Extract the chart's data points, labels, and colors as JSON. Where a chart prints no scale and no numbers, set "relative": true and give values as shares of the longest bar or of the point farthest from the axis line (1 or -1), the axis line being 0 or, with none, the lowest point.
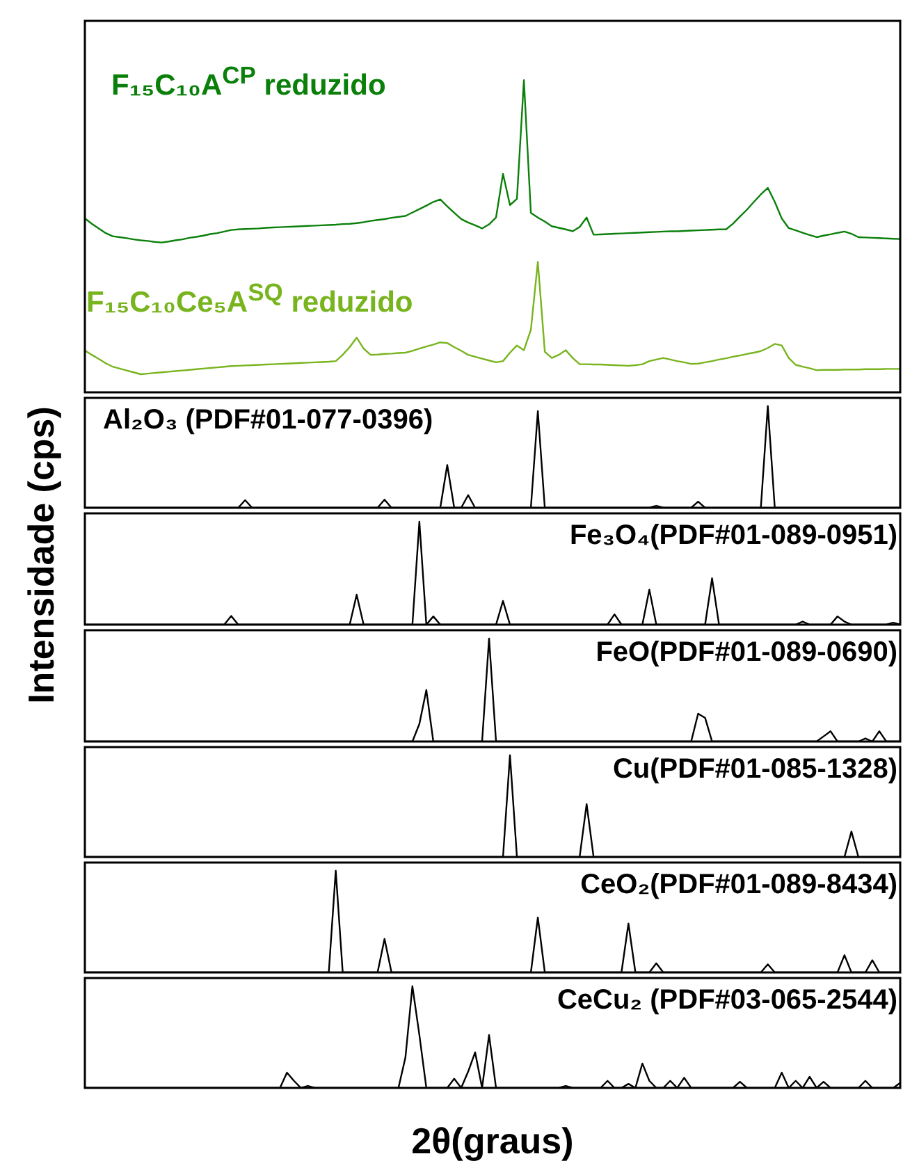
{
  "chart_data": [
    {
      "type": "line",
      "relative": true,
      "ylabel": "Intensidade (cps)",
      "categories": [
        null,
        null,
        null,
        null,
        null,
        null,
        null,
        null,
        null,
        null,
        null,
        null,
        null,
        null,
        null,
        null,
        null,
        null,
        null,
        null,
        null,
        null,
        null,
        null,
        null,
        null,
        null,
        null,
        null,
        null,
        null,
        null,
        null,
        null,
        null,
        null,
        null,
        null,
        null,
        null,
        null,
        null,
        null,
        null,
        null,
        null,
        null,
        null,
        null,
        null,
        null,
        null,
        null,
        null,
        null,
        null,
        null,
        null,
        null,
        null,
        null,
        null,
        null,
        null,
        null,
        null,
        null,
        null,
        null,
        null,
        null,
        null,
        null,
        null,
        null,
        null,
        null,
        null,
        null,
        null,
        null,
        null,
        null,
        null,
        null,
        null,
        null,
        null,
        null,
        null,
        null,
        null,
        null,
        null,
        null,
        null,
        null,
        null,
        null,
        null,
        null,
        null,
        null,
        null,
        null,
        null,
        null,
        null,
        null,
        null,
        null,
        null,
        null,
        null,
        null,
        null,
        null,
        null
      ],
      "series": [
        {
          "name": "F₁₅C₁₀A$^{CP}$ reduzido",
          "color": "#0a800a",
          "values": [
            0.557,
            0.54,
            0.525,
            0.51,
            0.5,
            0.497,
            0.494,
            0.49,
            0.487,
            0.485,
            0.482,
            0.48,
            0.483,
            0.487,
            0.49,
            0.495,
            0.498,
            0.502,
            0.507,
            0.51,
            0.515,
            0.52,
            0.522,
            0.523,
            0.524,
            0.525,
            0.527,
            0.528,
            0.529,
            0.53,
            0.531,
            0.532,
            0.533,
            0.534,
            0.535,
            0.536,
            0.537,
            0.539,
            0.54,
            0.542,
            0.545,
            0.549,
            0.552,
            0.555,
            0.559,
            0.562,
            0.565,
            0.576,
            0.587,
            0.598,
            0.61,
            0.618,
            0.596,
            0.575,
            0.555,
            0.544,
            0.535,
            0.525,
            0.538,
            0.56,
            0.7,
            0.6,
            0.62,
            1,
            0.575,
            0.56,
            0.547,
            0.532,
            0.527,
            0.522,
            0.516,
            0.53,
            0.56,
            0.505,
            0.506,
            0.507,
            0.508,
            0.509,
            0.51,
            0.511,
            0.512,
            0.513,
            0.514,
            0.515,
            0.516,
            0.516,
            0.517,
            0.518,
            0.519,
            0.52,
            0.521,
            0.522,
            0.522,
            0.54,
            0.563,
            0.585,
            0.61,
            0.634,
            0.655,
            0.61,
            0.557,
            0.526,
            0.519,
            0.511,
            0.504,
            0.497,
            0.502,
            0.506,
            0.511,
            0.515,
            0.508,
            0.497,
            0.496,
            0.495,
            0.494,
            0.493,
            0.492,
            0.491
          ]
        },
        {
          "name": "F₁₅C₁₀Ce₅A$^{SQ}$ reduzido",
          "color": "#78b41e",
          "values": [
            0.134,
            0.12,
            0.107,
            0.093,
            0.082,
            0.076,
            0.07,
            0.064,
            0.058,
            0.06,
            0.062,
            0.064,
            0.066,
            0.068,
            0.07,
            0.072,
            0.074,
            0.076,
            0.078,
            0.08,
            0.082,
            0.084,
            0.085,
            0.086,
            0.087,
            0.088,
            0.089,
            0.09,
            0.091,
            0.092,
            0.093,
            0.094,
            0.095,
            0.096,
            0.097,
            0.098,
            0.1,
            0.12,
            0.145,
            0.175,
            0.14,
            0.12,
            0.121,
            0.123,
            0.124,
            0.126,
            0.127,
            0.133,
            0.14,
            0.147,
            0.153,
            0.16,
            0.158,
            0.145,
            0.133,
            0.12,
            0.114,
            0.108,
            0.102,
            0.096,
            0.1,
            0.127,
            0.15,
            0.135,
            0.2,
            0.418,
            0.13,
            0.11,
            0.12,
            0.135,
            0.11,
            0.09,
            0.09,
            0.089,
            0.089,
            0.088,
            0.087,
            0.086,
            0.085,
            0.087,
            0.09,
            0.1,
            0.105,
            0.11,
            0.105,
            0.1,
            0.096,
            0.091,
            0.092,
            0.096,
            0.1,
            0.105,
            0.109,
            0.114,
            0.118,
            0.123,
            0.127,
            0.132,
            0.142,
            0.155,
            0.15,
            0.11,
            0.088,
            0.082,
            0.077,
            0.071,
            0.072,
            0.072,
            0.072,
            0.073,
            0.073,
            0.073,
            0.074,
            0.074,
            0.074,
            0.075,
            0.075,
            0.075
          ]
        }
      ]
    },
    {
      "type": "line",
      "relative": true,
      "color": "#000000",
      "annotations": [
        "Al₂O₃ (PDF#01-077-0396)"
      ],
      "categories": [
        null,
        null,
        null,
        null,
        null,
        null,
        null,
        null,
        null,
        null,
        null,
        null,
        null,
        null,
        null,
        null,
        null,
        null,
        null,
        null,
        null,
        null,
        null,
        null,
        null,
        null,
        null,
        null,
        null,
        null,
        null,
        null,
        null,
        null,
        null,
        null,
        null,
        null,
        null,
        null,
        null,
        null,
        null,
        null,
        null,
        null,
        null,
        null,
        null,
        null,
        null,
        null,
        null,
        null,
        null,
        null,
        null,
        null,
        null,
        null,
        null,
        null,
        null,
        null,
        null,
        null,
        null,
        null,
        null,
        null,
        null,
        null,
        null,
        null,
        null,
        null,
        null,
        null,
        null,
        null,
        null,
        null,
        null,
        null,
        null,
        null,
        null,
        null,
        null,
        null,
        null,
        null,
        null,
        null,
        null,
        null,
        null,
        null,
        null,
        null,
        null,
        null,
        null,
        null,
        null,
        null,
        null,
        null,
        null,
        null,
        null,
        null,
        null,
        null,
        null,
        null,
        null,
        null
      ],
      "values": [
        0,
        0,
        0,
        0,
        0,
        0,
        0,
        0,
        0,
        0,
        0,
        0,
        0,
        0,
        0,
        0,
        0,
        0,
        0,
        0,
        0,
        0,
        0,
        0.075,
        0,
        0,
        0,
        0,
        0,
        0,
        0,
        0,
        0,
        0,
        0,
        0,
        0,
        0,
        0,
        0,
        0,
        0,
        0,
        0.08,
        0,
        0,
        0,
        0,
        0,
        0,
        0,
        0,
        0.42,
        0,
        0,
        0.125,
        0,
        0,
        0,
        0,
        0,
        0,
        0,
        0,
        0,
        0.95,
        0,
        0,
        0,
        0,
        0,
        0,
        0,
        0,
        0,
        0,
        0,
        0,
        0,
        0,
        0,
        0,
        0.02,
        0,
        0,
        0,
        0,
        0,
        0.06,
        0,
        0,
        0,
        0,
        0,
        0,
        0,
        0,
        0,
        1,
        0,
        0,
        0,
        0,
        0,
        0,
        0,
        0,
        0,
        0,
        0,
        0,
        0,
        0,
        0,
        0,
        0,
        0,
        0
      ]
    },
    {
      "type": "line",
      "relative": true,
      "color": "#000000",
      "annotations": [
        "Fe₃O₄(PDF#01-089-0951)"
      ],
      "categories": [
        null,
        null,
        null,
        null,
        null,
        null,
        null,
        null,
        null,
        null,
        null,
        null,
        null,
        null,
        null,
        null,
        null,
        null,
        null,
        null,
        null,
        null,
        null,
        null,
        null,
        null,
        null,
        null,
        null,
        null,
        null,
        null,
        null,
        null,
        null,
        null,
        null,
        null,
        null,
        null,
        null,
        null,
        null,
        null,
        null,
        null,
        null,
        null,
        null,
        null,
        null,
        null,
        null,
        null,
        null,
        null,
        null,
        null,
        null,
        null,
        null,
        null,
        null,
        null,
        null,
        null,
        null,
        null,
        null,
        null,
        null,
        null,
        null,
        null,
        null,
        null,
        null,
        null,
        null,
        null,
        null,
        null,
        null,
        null,
        null,
        null,
        null,
        null,
        null,
        null,
        null,
        null,
        null,
        null,
        null,
        null,
        null,
        null,
        null,
        null,
        null,
        null,
        null,
        null,
        null,
        null,
        null,
        null,
        null,
        null,
        null,
        null,
        null,
        null,
        null,
        null,
        null,
        null
      ],
      "values": [
        0,
        0,
        0,
        0,
        0,
        0,
        0,
        0,
        0,
        0,
        0,
        0,
        0,
        0,
        0,
        0,
        0,
        0,
        0,
        0,
        0,
        0.085,
        0,
        0,
        0,
        0,
        0,
        0,
        0,
        0,
        0,
        0,
        0,
        0,
        0,
        0,
        0,
        0,
        0,
        0.29,
        0,
        0,
        0,
        0,
        0,
        0,
        0,
        0,
        1,
        0,
        0.08,
        0,
        0,
        0,
        0,
        0,
        0,
        0,
        0,
        0,
        0.23,
        0,
        0,
        0,
        0,
        0,
        0,
        0,
        0,
        0,
        0,
        0,
        0,
        0,
        0,
        0,
        0.1,
        0,
        0,
        0,
        0,
        0.34,
        0,
        0,
        0,
        0,
        0,
        0,
        0,
        0,
        0.45,
        0,
        0,
        0,
        0,
        0,
        0,
        0,
        0,
        0,
        0,
        0,
        0,
        0.03,
        0,
        0,
        0,
        0,
        0.08,
        0.03,
        0,
        0,
        0,
        0,
        0,
        0,
        0.02,
        0
      ]
    },
    {
      "type": "line",
      "relative": true,
      "color": "#000000",
      "annotations": [
        "FeO(PDF#01-089-0690)"
      ],
      "categories": [
        null,
        null,
        null,
        null,
        null,
        null,
        null,
        null,
        null,
        null,
        null,
        null,
        null,
        null,
        null,
        null,
        null,
        null,
        null,
        null,
        null,
        null,
        null,
        null,
        null,
        null,
        null,
        null,
        null,
        null,
        null,
        null,
        null,
        null,
        null,
        null,
        null,
        null,
        null,
        null,
        null,
        null,
        null,
        null,
        null,
        null,
        null,
        null,
        null,
        null,
        null,
        null,
        null,
        null,
        null,
        null,
        null,
        null,
        null,
        null,
        null,
        null,
        null,
        null,
        null,
        null,
        null,
        null,
        null,
        null,
        null,
        null,
        null,
        null,
        null,
        null,
        null,
        null,
        null,
        null,
        null,
        null,
        null,
        null,
        null,
        null,
        null,
        null,
        null,
        null,
        null,
        null,
        null,
        null,
        null,
        null,
        null,
        null,
        null,
        null,
        null,
        null,
        null,
        null,
        null,
        null,
        null,
        null,
        null,
        null,
        null,
        null,
        null,
        null,
        null,
        null,
        null,
        null
      ],
      "values": [
        0,
        0,
        0,
        0,
        0,
        0,
        0,
        0,
        0,
        0,
        0,
        0,
        0,
        0,
        0,
        0,
        0,
        0,
        0,
        0,
        0,
        0,
        0,
        0,
        0,
        0,
        0,
        0,
        0,
        0,
        0,
        0,
        0,
        0,
        0,
        0,
        0,
        0,
        0,
        0,
        0,
        0,
        0,
        0,
        0,
        0,
        0,
        0,
        0.17,
        0.5,
        0,
        0,
        0,
        0,
        0,
        0,
        0,
        0,
        1,
        0,
        0,
        0,
        0,
        0,
        0,
        0,
        0,
        0,
        0,
        0,
        0,
        0,
        0,
        0,
        0,
        0,
        0,
        0,
        0,
        0,
        0,
        0,
        0,
        0,
        0,
        0,
        0,
        0,
        0.27,
        0.23,
        0,
        0,
        0,
        0,
        0,
        0,
        0,
        0,
        0,
        0,
        0,
        0,
        0,
        0,
        0,
        0,
        0.05,
        0.1,
        0,
        0,
        0,
        0,
        0.03,
        0,
        0.1,
        0,
        0,
        0
      ]
    },
    {
      "type": "line",
      "relative": true,
      "color": "#000000",
      "annotations": [
        "Cu(PDF#01-085-1328)"
      ],
      "categories": [
        null,
        null,
        null,
        null,
        null,
        null,
        null,
        null,
        null,
        null,
        null,
        null,
        null,
        null,
        null,
        null,
        null,
        null,
        null,
        null,
        null,
        null,
        null,
        null,
        null,
        null,
        null,
        null,
        null,
        null,
        null,
        null,
        null,
        null,
        null,
        null,
        null,
        null,
        null,
        null,
        null,
        null,
        null,
        null,
        null,
        null,
        null,
        null,
        null,
        null,
        null,
        null,
        null,
        null,
        null,
        null,
        null,
        null,
        null,
        null,
        null,
        null,
        null,
        null,
        null,
        null,
        null,
        null,
        null,
        null,
        null,
        null,
        null,
        null,
        null,
        null,
        null,
        null,
        null,
        null,
        null,
        null,
        null,
        null,
        null,
        null,
        null,
        null,
        null,
        null,
        null,
        null,
        null,
        null,
        null,
        null,
        null,
        null,
        null,
        null,
        null,
        null,
        null,
        null,
        null,
        null,
        null,
        null,
        null,
        null,
        null,
        null,
        null,
        null,
        null,
        null,
        null,
        null
      ],
      "values": [
        0,
        0,
        0,
        0,
        0,
        0,
        0,
        0,
        0,
        0,
        0,
        0,
        0,
        0,
        0,
        0,
        0,
        0,
        0,
        0,
        0,
        0,
        0,
        0,
        0,
        0,
        0,
        0,
        0,
        0,
        0,
        0,
        0,
        0,
        0,
        0,
        0,
        0,
        0,
        0,
        0,
        0,
        0,
        0,
        0,
        0,
        0,
        0,
        0,
        0,
        0,
        0,
        0,
        0,
        0,
        0,
        0,
        0,
        0,
        0,
        0,
        1,
        0,
        0,
        0,
        0,
        0,
        0,
        0,
        0,
        0,
        0,
        0.52,
        0,
        0,
        0,
        0,
        0,
        0,
        0,
        0,
        0,
        0,
        0,
        0,
        0,
        0,
        0,
        0,
        0,
        0,
        0,
        0,
        0,
        0,
        0,
        0,
        0,
        0,
        0,
        0,
        0,
        0,
        0,
        0,
        0,
        0,
        0,
        0,
        0,
        0.25,
        0,
        0,
        0,
        0,
        0,
        0,
        0
      ]
    },
    {
      "type": "line",
      "relative": true,
      "color": "#000000",
      "annotations": [
        "CeO₂(PDF#01-089-8434)"
      ],
      "categories": [
        null,
        null,
        null,
        null,
        null,
        null,
        null,
        null,
        null,
        null,
        null,
        null,
        null,
        null,
        null,
        null,
        null,
        null,
        null,
        null,
        null,
        null,
        null,
        null,
        null,
        null,
        null,
        null,
        null,
        null,
        null,
        null,
        null,
        null,
        null,
        null,
        null,
        null,
        null,
        null,
        null,
        null,
        null,
        null,
        null,
        null,
        null,
        null,
        null,
        null,
        null,
        null,
        null,
        null,
        null,
        null,
        null,
        null,
        null,
        null,
        null,
        null,
        null,
        null,
        null,
        null,
        null,
        null,
        null,
        null,
        null,
        null,
        null,
        null,
        null,
        null,
        null,
        null,
        null,
        null,
        null,
        null,
        null,
        null,
        null,
        null,
        null,
        null,
        null,
        null,
        null,
        null,
        null,
        null,
        null,
        null,
        null,
        null,
        null,
        null,
        null,
        null,
        null,
        null,
        null,
        null,
        null,
        null,
        null,
        null,
        null,
        null,
        null,
        null,
        null,
        null,
        null,
        null
      ],
      "values": [
        0,
        0,
        0,
        0,
        0,
        0,
        0,
        0,
        0,
        0,
        0,
        0,
        0,
        0,
        0,
        0,
        0,
        0,
        0,
        0,
        0,
        0,
        0,
        0,
        0,
        0,
        0,
        0,
        0,
        0,
        0,
        0,
        0,
        0,
        0,
        0,
        1,
        0,
        0,
        0,
        0,
        0,
        0,
        0.33,
        0,
        0,
        0,
        0,
        0,
        0,
        0,
        0,
        0,
        0,
        0,
        0,
        0,
        0,
        0,
        0,
        0,
        0,
        0,
        0,
        0,
        0.54,
        0,
        0,
        0,
        0,
        0,
        0,
        0,
        0,
        0,
        0,
        0,
        0,
        0.48,
        0,
        0,
        0,
        0.09,
        0,
        0,
        0,
        0,
        0,
        0,
        0,
        0,
        0,
        0,
        0,
        0,
        0,
        0,
        0,
        0.08,
        0,
        0,
        0,
        0,
        0,
        0,
        0,
        0,
        0,
        0,
        0.17,
        0,
        0,
        0,
        0.12,
        0,
        0,
        0,
        0
      ]
    },
    {
      "type": "line",
      "relative": true,
      "color": "#000000",
      "annotations": [
        "CeCu₂ (PDF#03-065-2544)"
      ],
      "xlabel": "2θ(graus)",
      "categories": [
        null,
        null,
        null,
        null,
        null,
        null,
        null,
        null,
        null,
        null,
        null,
        null,
        null,
        null,
        null,
        null,
        null,
        null,
        null,
        null,
        null,
        null,
        null,
        null,
        null,
        null,
        null,
        null,
        null,
        null,
        null,
        null,
        null,
        null,
        null,
        null,
        null,
        null,
        null,
        null,
        null,
        null,
        null,
        null,
        null,
        null,
        null,
        null,
        null,
        null,
        null,
        null,
        null,
        null,
        null,
        null,
        null,
        null,
        null,
        null,
        null,
        null,
        null,
        null,
        null,
        null,
        null,
        null,
        null,
        null,
        null,
        null,
        null,
        null,
        null,
        null,
        null,
        null,
        null,
        null,
        null,
        null,
        null,
        null,
        null,
        null,
        null,
        null,
        null,
        null,
        null,
        null,
        null,
        null,
        null,
        null,
        null,
        null,
        null,
        null,
        null,
        null,
        null,
        null,
        null,
        null,
        null,
        null,
        null,
        null,
        null,
        null,
        null,
        null,
        null,
        null,
        null,
        null
      ],
      "values": [
        0,
        0,
        0,
        0,
        0,
        0,
        0,
        0,
        0,
        0,
        0,
        0,
        0,
        0,
        0,
        0,
        0,
        0,
        0,
        0,
        0,
        0,
        0,
        0,
        0,
        0,
        0,
        0,
        0,
        0.15,
        0.07,
        0,
        0.02,
        0,
        0,
        0,
        0,
        0,
        0,
        0,
        0,
        0,
        0,
        0,
        0,
        0,
        0.3,
        1,
        0.52,
        0,
        0,
        0,
        0,
        0.09,
        0,
        0.16,
        0.35,
        0,
        0.52,
        0,
        0,
        0,
        0,
        0,
        0,
        0,
        0,
        0,
        0,
        0.02,
        0,
        0,
        0,
        0,
        0,
        0.07,
        0,
        0,
        0.04,
        0,
        0.24,
        0.07,
        0,
        0,
        0.07,
        0,
        0.1,
        0,
        0,
        0,
        0,
        0,
        0,
        0,
        0.06,
        0,
        0,
        0,
        0,
        0,
        0.15,
        0,
        0.07,
        0,
        0.11,
        0,
        0.06,
        0,
        0,
        0,
        0,
        0,
        0.07,
        0,
        0,
        0,
        0,
        0.05
      ]
    }
  ]
}
